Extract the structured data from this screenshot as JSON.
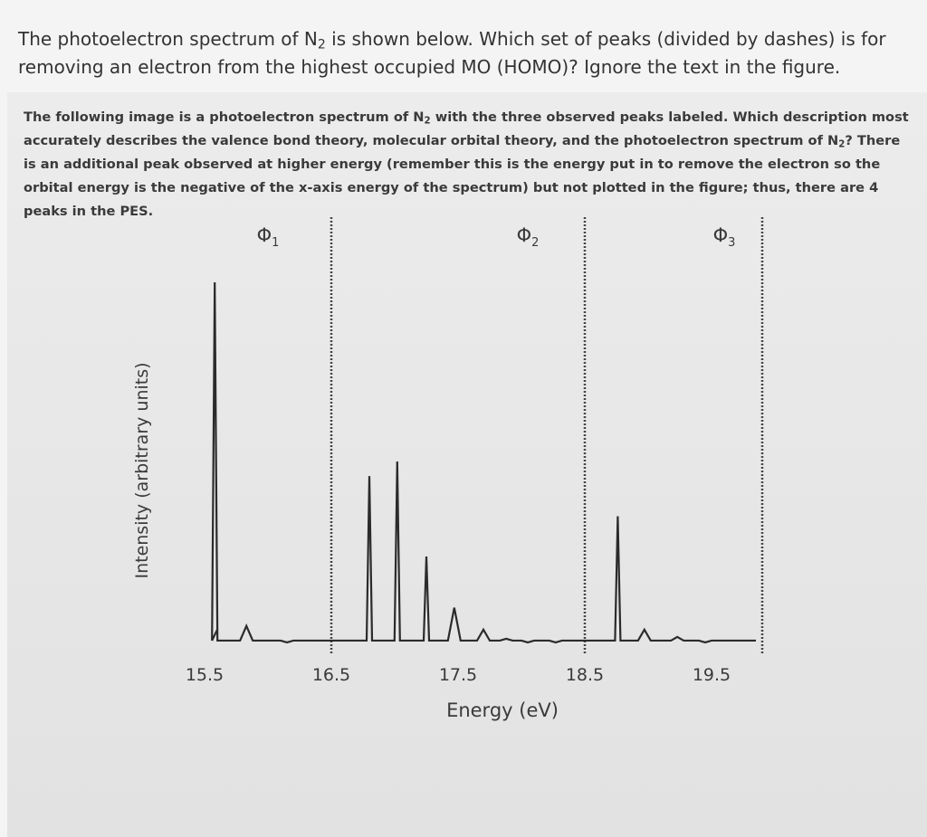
{
  "question": {
    "text_before_sub": "The photoelectron spectrum of N",
    "sub": "2",
    "text_after_sub": " is shown below.  Which set of peaks (divided by dashes) is for removing an electron from the highest occupied MO (HOMO)? Ignore the text in the figure."
  },
  "caption": {
    "part1": "The following image is a photoelectron spectrum of N",
    "sub1": "2",
    "part2": " with the three observed peaks labeled. Which description most accurately describes the valence bond theory, molecular orbital theory, and the photoelectron spectrum of N",
    "sub2": "2",
    "part3": "? There is an additional peak observed at higher energy (remember this is the energy put in to remove the electron so the orbital energy is the negative of the x-axis energy of the spectrum) but not plotted in the figure; thus, there are 4 peaks in the PES."
  },
  "chart_data": {
    "type": "line",
    "title": "",
    "xlabel": "Energy (eV)",
    "ylabel": "Intensity (arbitrary units)",
    "xlim": [
      15.5,
      19.9
    ],
    "ylim": [
      0,
      100
    ],
    "xticks": [
      15.5,
      16.5,
      17.5,
      18.5,
      19.5
    ],
    "xtick_labels": [
      "15.5",
      "16.5",
      "17.5",
      "18.5",
      "19.5"
    ],
    "grid": false,
    "baseline": 2,
    "dividers_x": [
      16.5,
      18.5,
      19.9
    ],
    "region_labels": [
      {
        "symbol": "Φ",
        "sub": "1",
        "x": 16.0
      },
      {
        "symbol": "Φ",
        "sub": "2",
        "x": 18.05
      },
      {
        "symbol": "Φ",
        "sub": "3",
        "x": 19.6
      }
    ],
    "peaks": [
      {
        "x": 15.58,
        "y": 100
      },
      {
        "x": 15.83,
        "y": 6
      },
      {
        "x": 16.15,
        "y": 1.5
      },
      {
        "x": 16.8,
        "y": 47
      },
      {
        "x": 17.02,
        "y": 51
      },
      {
        "x": 17.25,
        "y": 25
      },
      {
        "x": 17.47,
        "y": 11
      },
      {
        "x": 17.7,
        "y": 5
      },
      {
        "x": 17.88,
        "y": 2.5
      },
      {
        "x": 18.05,
        "y": 1.5
      },
      {
        "x": 18.27,
        "y": 1.5
      },
      {
        "x": 18.76,
        "y": 36
      },
      {
        "x": 18.97,
        "y": 5
      },
      {
        "x": 19.23,
        "y": 3
      },
      {
        "x": 19.45,
        "y": 1.5
      }
    ]
  }
}
